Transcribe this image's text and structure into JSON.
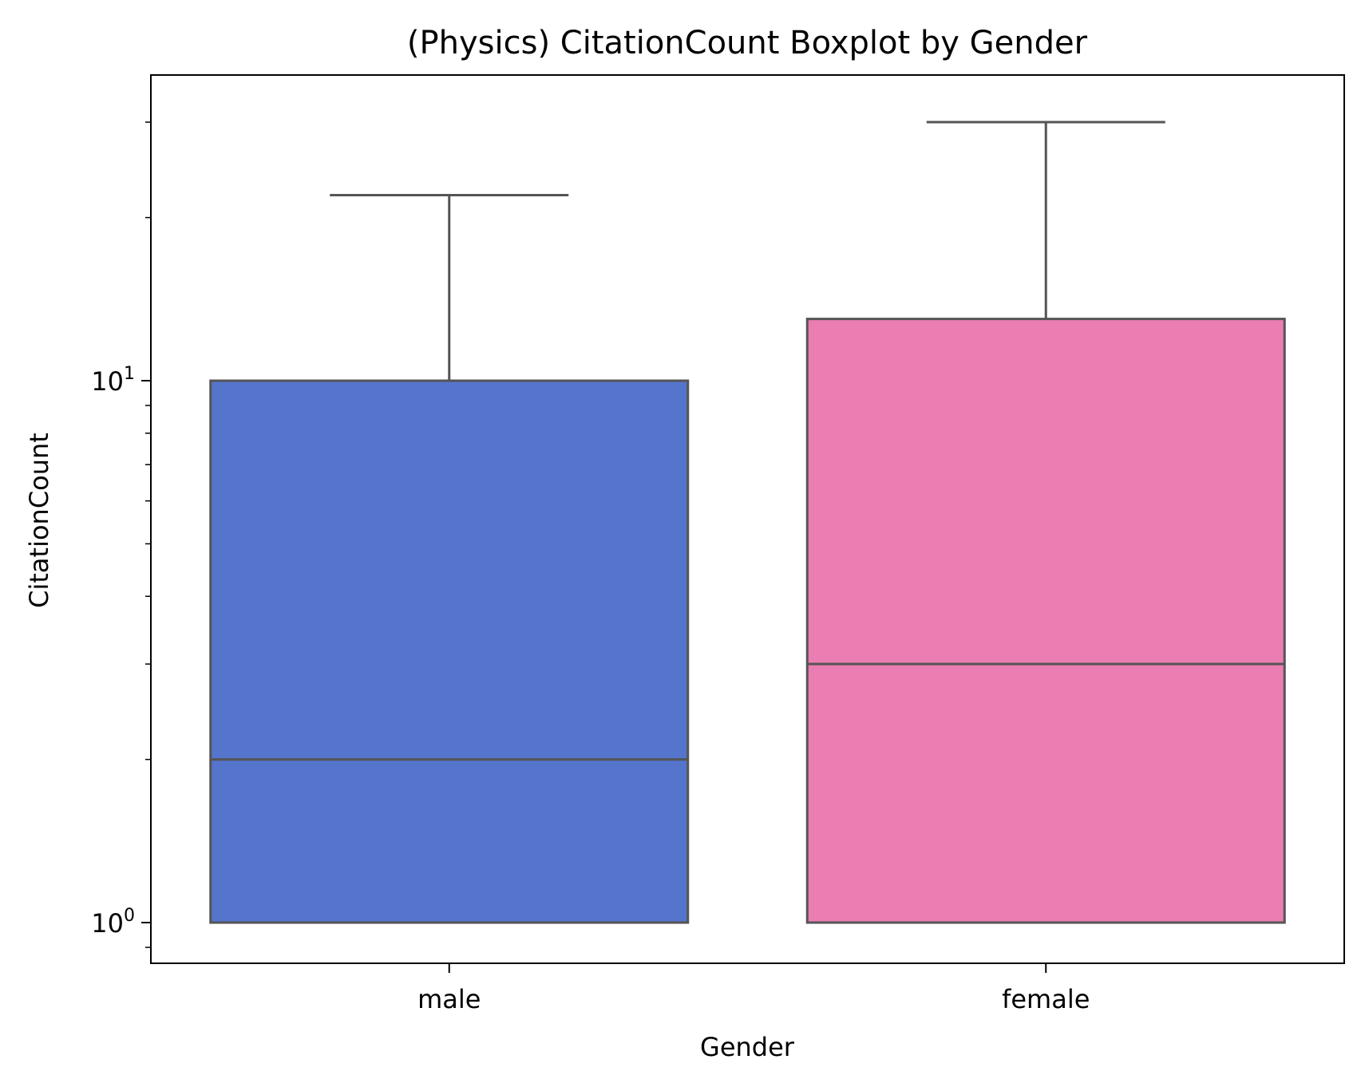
{
  "chart_data": {
    "type": "boxplot",
    "title": "(Physics) CitationCount Boxplot by Gender",
    "xlabel": "Gender",
    "ylabel": "CitationCount",
    "y_scale": "log",
    "y_range": [
      0.87,
      45
    ],
    "y_major_ticks": [
      {
        "value": 1,
        "base": "10",
        "exponent": "0"
      },
      {
        "value": 10,
        "base": "10",
        "exponent": "1"
      }
    ],
    "y_minor_ticks": [
      0.9,
      2,
      3,
      4,
      5,
      6,
      7,
      8,
      9,
      20,
      30,
      40
    ],
    "grid": false,
    "categories": [
      "male",
      "female"
    ],
    "boxes": [
      {
        "category": "male",
        "whisker_low": 1,
        "q1": 1,
        "median": 2,
        "q3": 10,
        "whisker_high": 22,
        "color": "#5574cc"
      },
      {
        "category": "female",
        "whisker_low": 1,
        "q1": 1,
        "median": 3,
        "q3": 13,
        "whisker_high": 30,
        "color": "#eb7db2"
      }
    ],
    "line_color": "#555555"
  }
}
